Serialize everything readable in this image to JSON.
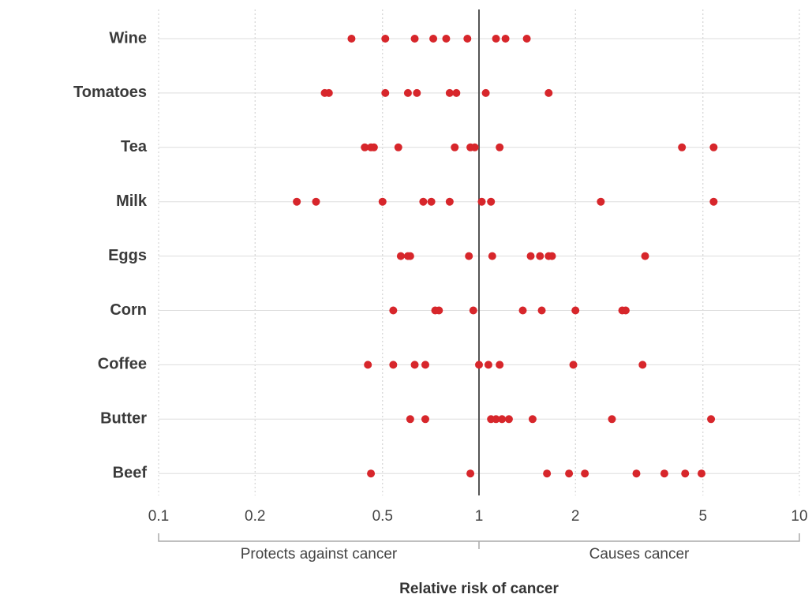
{
  "chart_data": {
    "type": "dot",
    "categories": [
      "Wine",
      "Tomatoes",
      "Tea",
      "Milk",
      "Eggs",
      "Corn",
      "Coffee",
      "Butter",
      "Beef"
    ],
    "values": [
      [
        0.4,
        0.51,
        0.63,
        0.72,
        0.79,
        0.92,
        1.13,
        1.21,
        1.41
      ],
      [
        0.33,
        0.34,
        0.51,
        0.6,
        0.64,
        0.81,
        0.85,
        1.05,
        1.65
      ],
      [
        0.44,
        0.46,
        0.47,
        0.56,
        0.84,
        0.94,
        0.97,
        1.16,
        4.3,
        5.4
      ],
      [
        0.27,
        0.31,
        0.5,
        0.67,
        0.71,
        0.81,
        1.02,
        1.09,
        2.4,
        5.4
      ],
      [
        0.57,
        0.6,
        0.61,
        0.93,
        1.1,
        1.45,
        1.55,
        1.65,
        1.69,
        3.3
      ],
      [
        0.54,
        0.73,
        0.75,
        0.96,
        1.37,
        1.57,
        2.0,
        2.8,
        2.87
      ],
      [
        0.45,
        0.54,
        0.63,
        0.68,
        1.0,
        1.07,
        1.16,
        1.97,
        3.24
      ],
      [
        0.61,
        0.68,
        1.09,
        1.13,
        1.18,
        1.24,
        1.47,
        2.6,
        5.3
      ],
      [
        0.46,
        0.94,
        1.63,
        1.91,
        2.14,
        3.1,
        3.79,
        4.4,
        4.95
      ]
    ],
    "color": "#d7262b",
    "xlim": [
      0.1,
      10
    ],
    "xticks": [
      0.1,
      0.2,
      0.5,
      1,
      2,
      5,
      10
    ],
    "log_x": true,
    "grid": true,
    "reference_line": 1,
    "annotations": [
      "Protects against cancer",
      "Causes cancer"
    ],
    "xlabel": "Relative risk of cancer"
  }
}
